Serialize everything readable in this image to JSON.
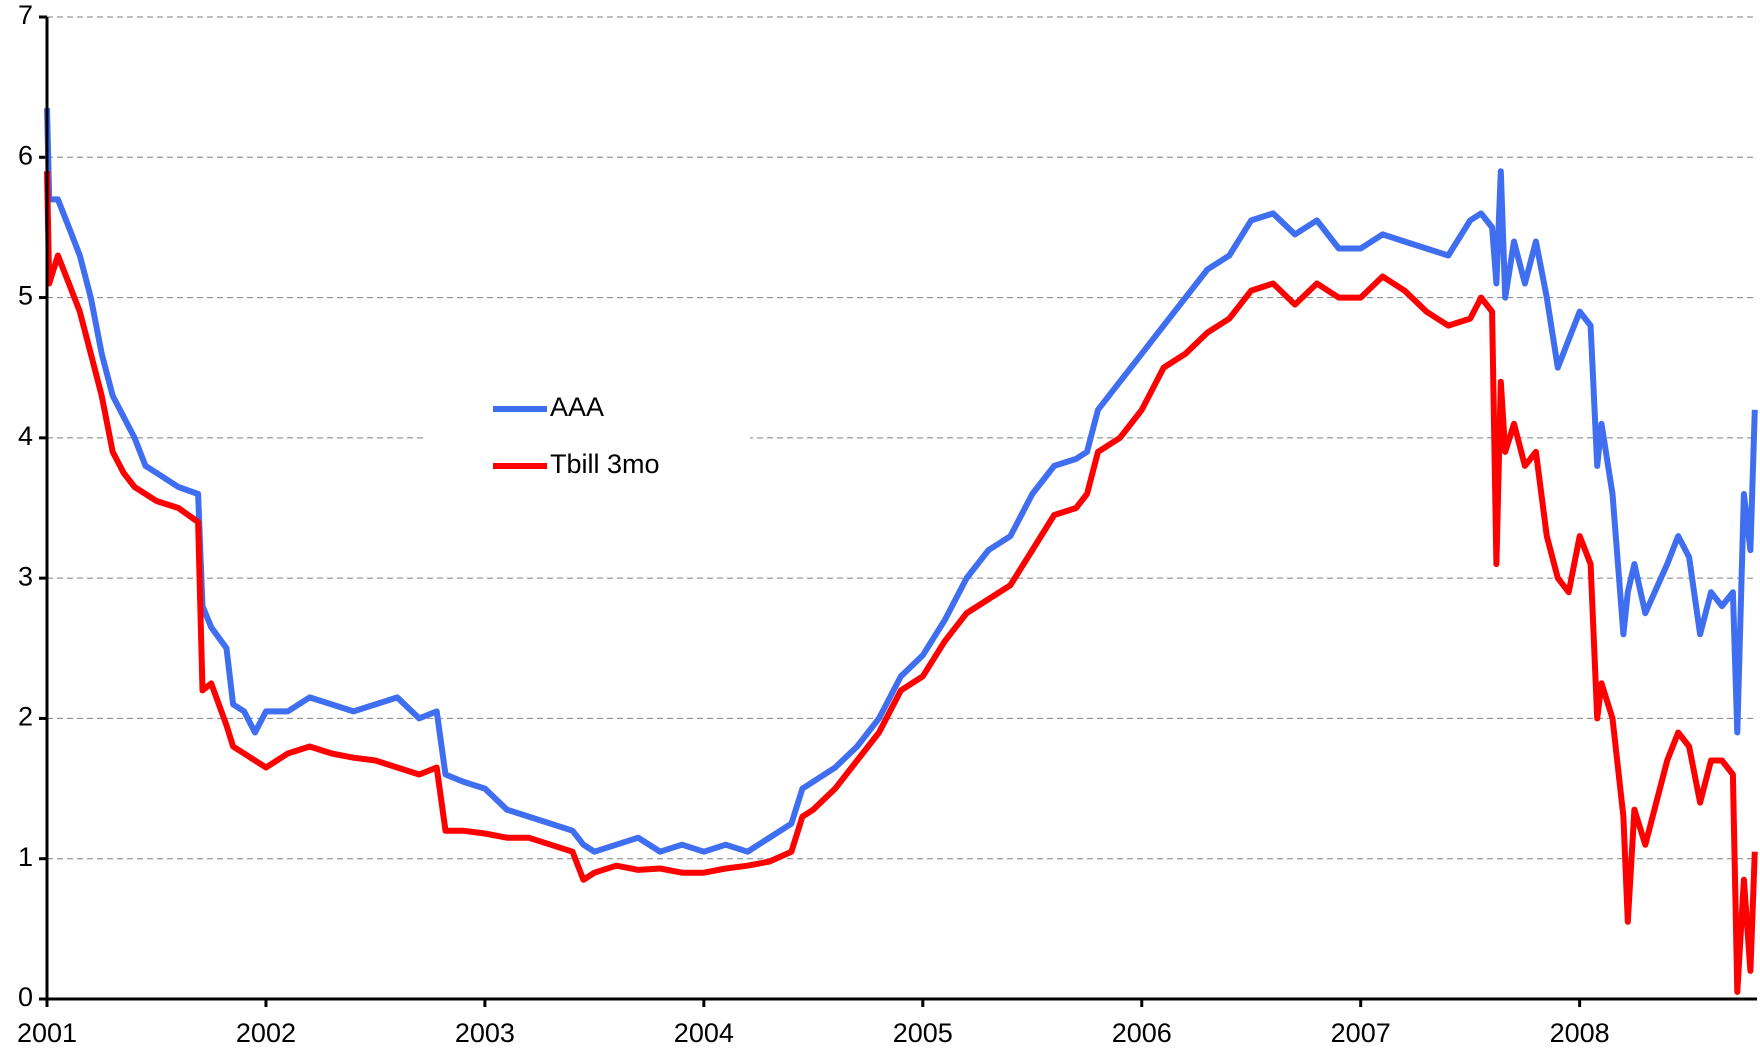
{
  "chart_data": {
    "type": "line",
    "x": [
      2001.0,
      2001.01,
      2001.05,
      2001.1,
      2001.15,
      2001.2,
      2001.25,
      2001.3,
      2001.35,
      2001.4,
      2001.45,
      2001.5,
      2001.6,
      2001.69,
      2001.71,
      2001.75,
      2001.82,
      2001.85,
      2001.9,
      2001.95,
      2002.0,
      2002.1,
      2002.2,
      2002.3,
      2002.4,
      2002.5,
      2002.6,
      2002.7,
      2002.78,
      2002.82,
      2002.9,
      2003.0,
      2003.1,
      2003.2,
      2003.3,
      2003.4,
      2003.45,
      2003.5,
      2003.6,
      2003.7,
      2003.8,
      2003.9,
      2004.0,
      2004.1,
      2004.2,
      2004.3,
      2004.4,
      2004.45,
      2004.5,
      2004.6,
      2004.7,
      2004.8,
      2004.9,
      2005.0,
      2005.1,
      2005.2,
      2005.3,
      2005.4,
      2005.5,
      2005.6,
      2005.7,
      2005.75,
      2005.8,
      2005.9,
      2006.0,
      2006.1,
      2006.2,
      2006.3,
      2006.4,
      2006.5,
      2006.6,
      2006.7,
      2006.8,
      2006.9,
      2007.0,
      2007.1,
      2007.2,
      2007.3,
      2007.4,
      2007.5,
      2007.55,
      2007.6,
      2007.62,
      2007.64,
      2007.66,
      2007.7,
      2007.75,
      2007.8,
      2007.85,
      2007.9,
      2007.95,
      2008.0,
      2008.05,
      2008.08,
      2008.1,
      2008.15,
      2008.2,
      2008.22,
      2008.25,
      2008.3,
      2008.4,
      2008.45,
      2008.5,
      2008.55,
      2008.6,
      2008.65,
      2008.7,
      2008.72,
      2008.75,
      2008.78,
      2008.8
    ],
    "series": [
      {
        "name": "AAA",
        "color": "#3f6ef0",
        "values": [
          6.35,
          5.7,
          5.7,
          5.5,
          5.3,
          5.0,
          4.6,
          4.3,
          4.15,
          4.0,
          3.8,
          3.75,
          3.65,
          3.6,
          2.8,
          2.65,
          2.5,
          2.1,
          2.05,
          1.9,
          2.05,
          2.05,
          2.15,
          2.1,
          2.05,
          2.1,
          2.15,
          2.0,
          2.05,
          1.6,
          1.55,
          1.5,
          1.35,
          1.3,
          1.25,
          1.2,
          1.1,
          1.05,
          1.1,
          1.15,
          1.05,
          1.1,
          1.05,
          1.1,
          1.05,
          1.15,
          1.25,
          1.5,
          1.55,
          1.65,
          1.8,
          2.0,
          2.3,
          2.45,
          2.7,
          3.0,
          3.2,
          3.3,
          3.6,
          3.8,
          3.85,
          3.9,
          4.2,
          4.4,
          4.6,
          4.8,
          5.0,
          5.2,
          5.3,
          5.55,
          5.6,
          5.45,
          5.55,
          5.35,
          5.35,
          5.45,
          5.4,
          5.35,
          5.3,
          5.55,
          5.6,
          5.5,
          5.1,
          5.9,
          5.0,
          5.4,
          5.1,
          5.4,
          5.0,
          4.5,
          4.7,
          4.9,
          4.8,
          3.8,
          4.1,
          3.6,
          2.6,
          2.9,
          3.1,
          2.75,
          3.1,
          3.3,
          3.15,
          2.6,
          2.9,
          2.8,
          2.9,
          1.9,
          3.6,
          3.2,
          4.2
        ]
      },
      {
        "name": "Tbill 3mo",
        "color": "#ff0000",
        "values": [
          5.9,
          5.1,
          5.3,
          5.1,
          4.9,
          4.6,
          4.3,
          3.9,
          3.75,
          3.65,
          3.6,
          3.55,
          3.5,
          3.4,
          2.2,
          2.25,
          1.95,
          1.8,
          1.75,
          1.7,
          1.65,
          1.75,
          1.8,
          1.75,
          1.72,
          1.7,
          1.65,
          1.6,
          1.65,
          1.2,
          1.2,
          1.18,
          1.15,
          1.15,
          1.1,
          1.05,
          0.85,
          0.9,
          0.95,
          0.92,
          0.93,
          0.9,
          0.9,
          0.93,
          0.95,
          0.98,
          1.05,
          1.3,
          1.35,
          1.5,
          1.7,
          1.9,
          2.2,
          2.3,
          2.55,
          2.75,
          2.85,
          2.95,
          3.2,
          3.45,
          3.5,
          3.6,
          3.9,
          4.0,
          4.2,
          4.5,
          4.6,
          4.75,
          4.85,
          5.05,
          5.1,
          4.95,
          5.1,
          5.0,
          5.0,
          5.15,
          5.05,
          4.9,
          4.8,
          4.85,
          5.0,
          4.9,
          3.1,
          4.4,
          3.9,
          4.1,
          3.8,
          3.9,
          3.3,
          3.0,
          2.9,
          3.3,
          3.1,
          2.0,
          2.25,
          2.0,
          1.3,
          0.55,
          1.35,
          1.1,
          1.7,
          1.9,
          1.8,
          1.4,
          1.7,
          1.7,
          1.6,
          0.05,
          0.85,
          0.2,
          1.05
        ]
      }
    ],
    "xlim": [
      2001,
      2008.81
    ],
    "xticks": [
      2001,
      2002,
      2003,
      2004,
      2005,
      2006,
      2007,
      2008
    ],
    "ylim": [
      0,
      7
    ],
    "yticks": [
      0,
      1,
      2,
      3,
      4,
      5,
      6,
      7
    ],
    "grid": true,
    "legend_position": "center-left"
  }
}
